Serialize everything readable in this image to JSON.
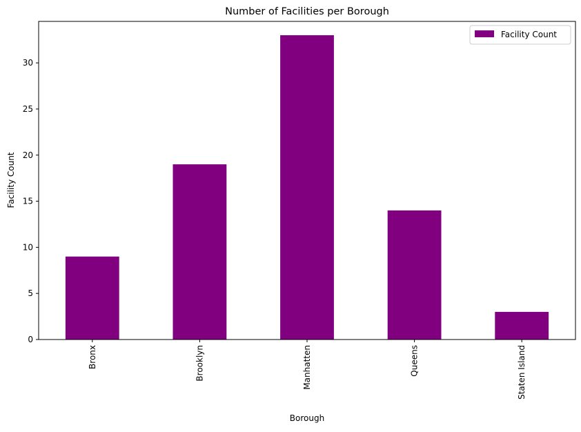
{
  "chart_data": {
    "type": "bar",
    "title": "Number of Facilities per Borough",
    "xlabel": "Borough",
    "ylabel": "Facility Count",
    "categories": [
      "Bronx",
      "Brooklyn",
      "Manhatten",
      "Queens",
      "Staten Island"
    ],
    "series": [
      {
        "name": "Facility Count",
        "values": [
          9,
          19,
          33,
          14,
          3
        ]
      }
    ],
    "ylim": [
      0,
      34.5
    ],
    "yticks": [
      0,
      5,
      10,
      15,
      20,
      25,
      30
    ],
    "grid": false,
    "legend_position": "top-right",
    "bar_color": "#800080"
  }
}
